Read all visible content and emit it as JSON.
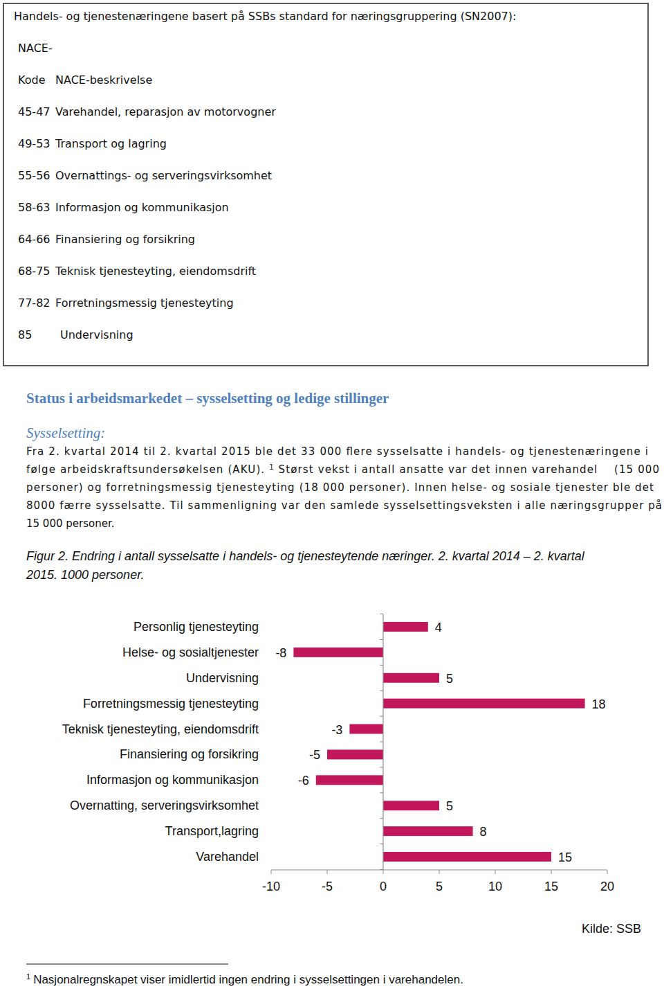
{
  "box": {
    "title": "Handels- og tjenestenæringene basert på SSBs standard for næringsgruppering (SN2007):",
    "header": [
      "NACE-",
      "Kode",
      "NACE-beskrivelse"
    ],
    "rows": [
      {
        "code": "45-47",
        "description": "Varehandel, reparasjon av motorvogner"
      },
      {
        "code": "49-53",
        "description": "Transport og lagring"
      },
      {
        "code": "55-56",
        "description": "Overnattings- og serveringsvirksomhet"
      },
      {
        "code": "58-63",
        "description": "Informasjon og kommunikasjon"
      },
      {
        "code": "64-66",
        "description": "Finansiering og forsikring"
      },
      {
        "code": "68-75",
        "description": "Teknisk tjenesteyting, eiendomsdrift"
      },
      {
        "code": "77-82",
        "description": "Forretningsmessig tjenesteyting"
      },
      {
        "code": "85",
        "description": "Undervisning"
      }
    ]
  },
  "section": {
    "heading": "Status i arbeidsmarkedet – sysselsetting og ledige stillinger",
    "subheading": "Sysselsetting:",
    "paragraph": [
      [
        "Fra 2. kvartal 2014 til 2. kvartal 2015 ble det 33 000 flere sysselsatte i handels- og tjenestenæringene i"
      ],
      [
        "følge arbeidskraftsundersøkelsen (AKU). ",
        {
          "sup": "1"
        },
        " Størst vekst i antall ansatte var det innen varehandel    (15 000"
      ],
      [
        "personer) og forretningsmessig tjenesteyting (18 000 personer). Innen helse- og sosiale tjenester ble det"
      ],
      [
        "8000 færre sysselsatte. Til sammenligning var den samlede sysselsettingsveksten i alle næringsgrupper på"
      ],
      [
        "15 000 personer."
      ]
    ],
    "figure_caption": [
      "Figur 2. Endring i antall sysselsatte i handels- og tjenesteytende næringer. 2. kvartal 2014 – 2. kvartal",
      "2015. 1000 personer."
    ]
  },
  "chart_data": {
    "type": "bar",
    "orientation": "horizontal",
    "categories": [
      "Personlig tjenesteyting",
      "Helse- og sosialtjenester",
      "Undervisning",
      "Forretningsmessig tjenesteyting",
      "Teknisk tjenesteyting, eiendomsdrift",
      "Finansiering og forsikring",
      "Informasjon og kommunikasjon",
      "Overnatting, serveringsvirksomhet",
      "Transport,lagring",
      "Varehandel"
    ],
    "values": [
      4,
      -8,
      5,
      18,
      -3,
      -5,
      -6,
      5,
      8,
      15
    ],
    "color": "#c2185b",
    "xlim": [
      -10,
      20
    ],
    "xticks": [
      -10,
      -5,
      0,
      5,
      10,
      15,
      20
    ],
    "grid": false,
    "data_labels": true
  },
  "source": "Kilde: SSB",
  "footnote": {
    "marker": "1",
    "text": "Nasjonalregnskapet viser imidlertid ingen endring i sysselsettingen i varehandelen."
  }
}
